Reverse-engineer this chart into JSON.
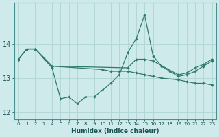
{
  "xlabel": "Humidex (Indice chaleur)",
  "background_color": "#ceeaea",
  "grid_color": "#aed4d4",
  "line_color": "#2d7a6a",
  "series1_x": [
    0,
    1,
    2,
    4,
    5,
    6,
    7,
    8,
    9,
    10,
    11,
    12,
    13,
    14,
    15,
    16,
    17,
    18,
    19,
    20,
    21,
    22,
    23
  ],
  "series1_y": [
    13.55,
    13.85,
    13.85,
    13.3,
    12.4,
    12.45,
    12.25,
    12.45,
    12.45,
    12.65,
    12.85,
    13.1,
    13.75,
    14.15,
    14.85,
    13.65,
    13.35,
    13.2,
    13.05,
    13.1,
    13.2,
    13.35,
    13.5
  ],
  "series2_x": [
    0,
    1,
    2,
    3,
    4,
    10,
    11,
    12,
    13,
    14,
    15,
    16,
    17,
    19,
    20,
    21,
    22,
    23
  ],
  "series2_y": [
    13.55,
    13.85,
    13.85,
    13.6,
    13.35,
    13.25,
    13.2,
    13.2,
    13.2,
    13.15,
    13.1,
    13.05,
    13.0,
    12.95,
    12.9,
    12.85,
    12.85,
    12.8
  ],
  "series3_x": [
    0,
    1,
    2,
    3,
    4,
    13,
    14,
    15,
    16,
    19,
    20,
    21,
    22,
    23
  ],
  "series3_y": [
    13.55,
    13.85,
    13.85,
    13.6,
    13.35,
    13.3,
    13.55,
    13.55,
    13.5,
    13.1,
    13.15,
    13.3,
    13.4,
    13.55
  ],
  "ylim": [
    11.8,
    15.2
  ],
  "yticks": [
    12,
    13,
    14
  ],
  "x_values": [
    0,
    1,
    2,
    3,
    4,
    5,
    6,
    7,
    8,
    9,
    10,
    11,
    12,
    13,
    14,
    15,
    16,
    17,
    18,
    19,
    20,
    21,
    22,
    23
  ],
  "xlim": [
    -0.5,
    23.5
  ]
}
